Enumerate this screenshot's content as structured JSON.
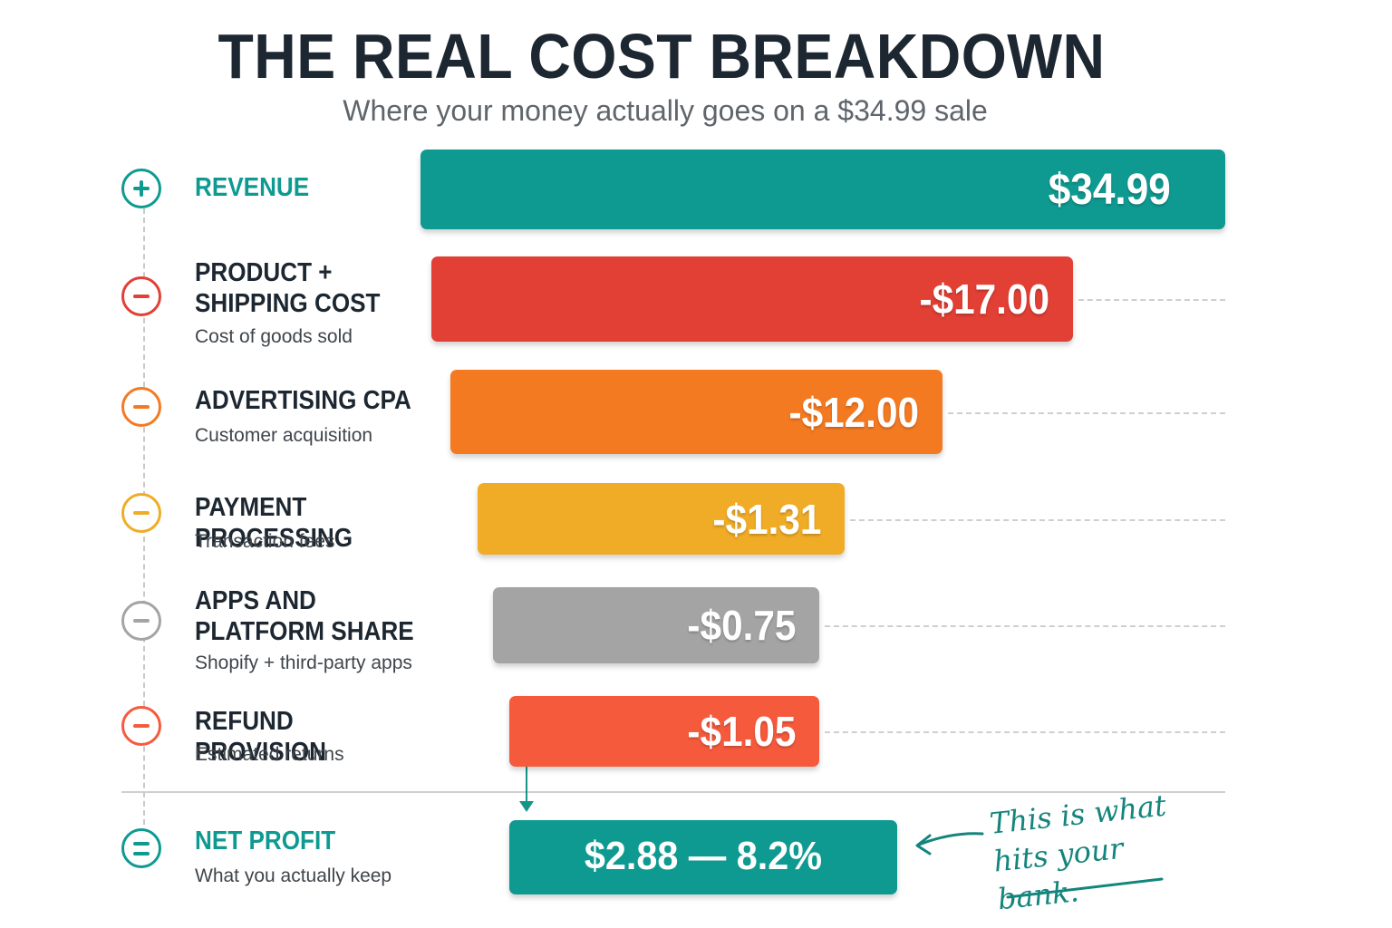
{
  "header": {
    "title": "THE REAL COST BREAKDOWN",
    "subtitle": "Where your money actually goes on a $34.99 sale"
  },
  "colors": {
    "revenue": "#0f9a91",
    "product_shipping": "#e23f35",
    "advertising": "#f47a22",
    "payment": "#f0ac26",
    "apps_platform": "#a4a4a4",
    "refund": "#f65a3d",
    "net_profit": "#0f9a91",
    "annotation": "#14857c"
  },
  "chart_data": {
    "type": "bar",
    "title": "THE REAL COST BREAKDOWN",
    "subtitle": "Where your money actually goes on a $34.99 sale",
    "categories": [
      "REVENUE",
      "PRODUCT + SHIPPING COST",
      "ADVERTISING CPA",
      "PAYMENT PROCESSING",
      "APPS AND PLATFORM SHARE",
      "REFUND PROVISION",
      "NET PROFIT"
    ],
    "values": [
      34.99,
      -17.0,
      -12.0,
      -1.31,
      -0.75,
      -1.05,
      2.88
    ],
    "rows": [
      {
        "label": "REVENUE",
        "sublabel": "",
        "value": 34.99,
        "value_label": "$34.99",
        "icon": "plus-icon",
        "color": "#0f9a91"
      },
      {
        "label": "PRODUCT + SHIPPING COST",
        "sublabel": "Cost of goods sold",
        "value": -17.0,
        "value_label": "-$17.00",
        "icon": "minus-icon",
        "color": "#e23f35"
      },
      {
        "label": "ADVERTISING CPA",
        "sublabel": "Customer acquisition",
        "value": -12.0,
        "value_label": "-$12.00",
        "icon": "minus-icon",
        "color": "#f47a22"
      },
      {
        "label": "PAYMENT PROCESSING",
        "sublabel": "Transaction fees",
        "value": -1.31,
        "value_label": "-$1.31",
        "icon": "minus-icon",
        "color": "#f0ac26"
      },
      {
        "label": "APPS AND PLATFORM SHARE",
        "sublabel": "Shopify + third-party apps",
        "value": -0.75,
        "value_label": "-$0.75",
        "icon": "minus-icon",
        "color": "#a4a4a4"
      },
      {
        "label": "REFUND PROVISION",
        "sublabel": "Estimated returns",
        "value": -1.05,
        "value_label": "-$1.05",
        "icon": "minus-icon",
        "color": "#f65a3d"
      }
    ],
    "net": {
      "label": "NET PROFIT",
      "sublabel": "What you actually keep",
      "value": 2.88,
      "percent": 8.2,
      "value_label": "$2.88 — 8.2%",
      "icon": "equals-icon",
      "color": "#0f9a91"
    },
    "annotation": "This is what hits your bank."
  }
}
